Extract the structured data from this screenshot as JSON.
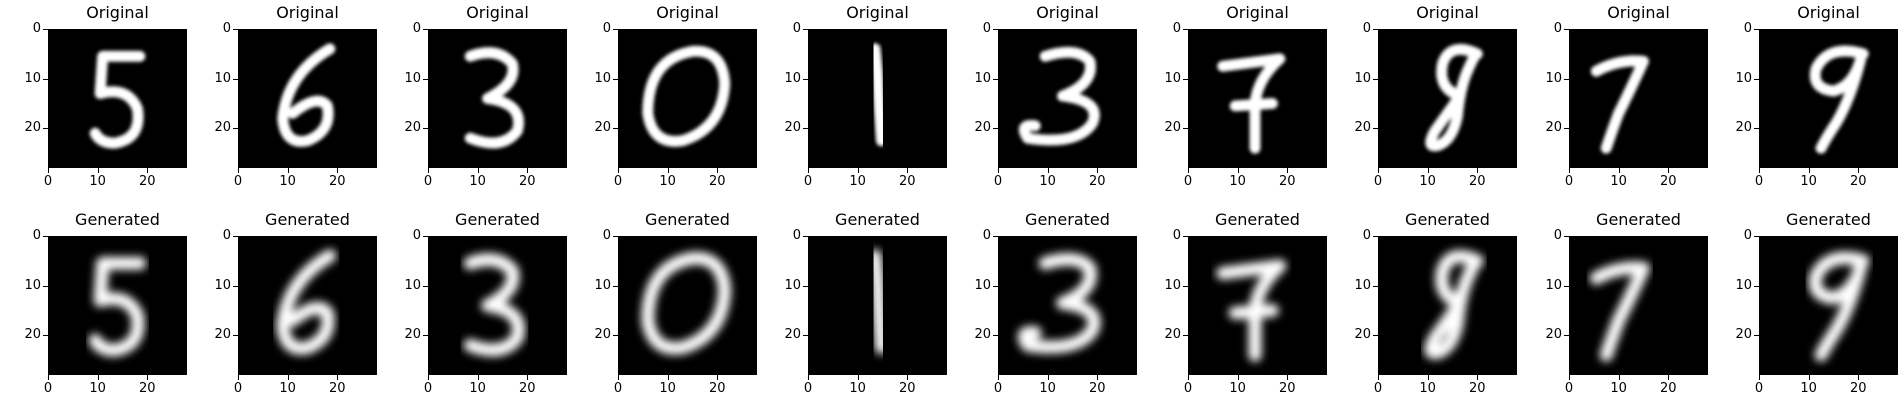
{
  "figure": {
    "grid": "2x10",
    "colormap": "gray",
    "background": "#000000",
    "foreground": "#ffffff",
    "axis": {
      "xlim": [
        0,
        28
      ],
      "ylim": [
        28,
        0
      ],
      "xticks": [
        "0",
        "10",
        "20"
      ],
      "yticks": [
        "0",
        "10",
        "20"
      ]
    },
    "rows": [
      {
        "row": "original",
        "panels": [
          {
            "title": "Original",
            "depicts": "handwritten digit 5",
            "style": "sharp"
          },
          {
            "title": "Original",
            "depicts": "handwritten digit 6",
            "style": "sharp"
          },
          {
            "title": "Original",
            "depicts": "handwritten digit 3",
            "style": "sharp"
          },
          {
            "title": "Original",
            "depicts": "handwritten digit 0",
            "style": "sharp"
          },
          {
            "title": "Original",
            "depicts": "handwritten digit 1",
            "style": "sharp"
          },
          {
            "title": "Original",
            "depicts": "handwritten digit 3",
            "style": "sharp"
          },
          {
            "title": "Original",
            "depicts": "handwritten digit 7",
            "style": "sharp"
          },
          {
            "title": "Original",
            "depicts": "handwritten digit 8",
            "style": "sharp"
          },
          {
            "title": "Original",
            "depicts": "handwritten digit 7",
            "style": "sharp"
          },
          {
            "title": "Original",
            "depicts": "handwritten digit 9",
            "style": "sharp"
          }
        ]
      },
      {
        "row": "generated",
        "panels": [
          {
            "title": "Generated",
            "depicts": "blurry reconstruction of digit 5",
            "style": "blurry"
          },
          {
            "title": "Generated",
            "depicts": "blurry reconstruction of digit 6",
            "style": "blurry"
          },
          {
            "title": "Generated",
            "depicts": "blurry reconstruction of digit 3",
            "style": "blurry"
          },
          {
            "title": "Generated",
            "depicts": "blurry reconstruction of digit 0",
            "style": "blurry"
          },
          {
            "title": "Generated",
            "depicts": "blurry reconstruction of digit 1",
            "style": "blurry"
          },
          {
            "title": "Generated",
            "depicts": "blurry reconstruction of digit 3",
            "style": "blurry"
          },
          {
            "title": "Generated",
            "depicts": "blurry reconstruction of digit 7",
            "style": "blurry"
          },
          {
            "title": "Generated",
            "depicts": "blurry reconstruction of digit 8",
            "style": "blurry"
          },
          {
            "title": "Generated",
            "depicts": "blurry reconstruction of digit 7",
            "style": "blurry"
          },
          {
            "title": "Generated",
            "depicts": "blurry reconstruction of digit 9",
            "style": "blurry"
          }
        ]
      }
    ]
  }
}
